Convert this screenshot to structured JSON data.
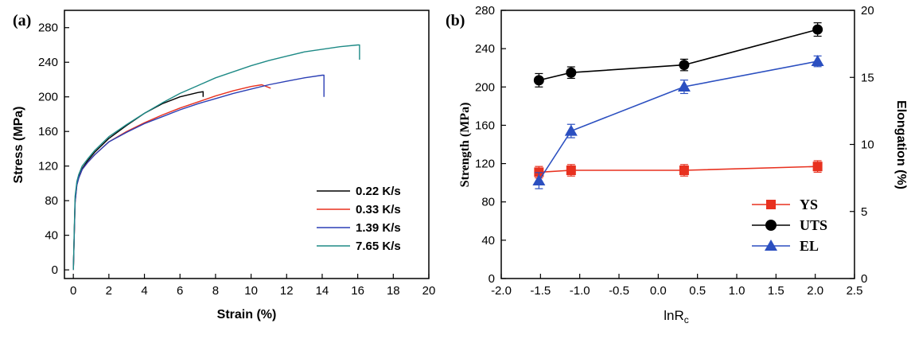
{
  "chart_data": [
    {
      "type": "line",
      "panel_label": "(a)",
      "xlabel": "Strain (%)",
      "ylabel": "Stress (MPa)",
      "xlim": [
        -0.5,
        20
      ],
      "ylim": [
        -10,
        300
      ],
      "xticks": [
        0,
        2,
        4,
        6,
        8,
        10,
        12,
        14,
        16,
        18,
        20
      ],
      "yticks": [
        0,
        40,
        80,
        120,
        160,
        200,
        240,
        280
      ],
      "legend_position": "bottom-right",
      "series": [
        {
          "name": "0.22 K/s",
          "color": "#000000",
          "x": [
            0,
            0.05,
            0.1,
            0.2,
            0.3,
            0.5,
            0.8,
            1.2,
            2,
            3,
            4,
            5,
            6,
            7,
            7.3,
            7.3
          ],
          "y": [
            0,
            40,
            80,
            100,
            108,
            117,
            126,
            136,
            152,
            167,
            181,
            192,
            200,
            205,
            206,
            200
          ]
        },
        {
          "name": "0.33 K/s",
          "color": "#e8311f",
          "x": [
            0,
            0.05,
            0.1,
            0.2,
            0.3,
            0.5,
            0.8,
            1.2,
            2,
            3,
            4,
            5,
            6,
            7,
            8,
            9,
            10,
            10.6,
            11.1
          ],
          "y": [
            0,
            40,
            78,
            98,
            106,
            116,
            124,
            133,
            148,
            160,
            170,
            179,
            187,
            194,
            201,
            207,
            212,
            214,
            210
          ]
        },
        {
          "name": "1.39 K/s",
          "color": "#2b3fb5",
          "x": [
            0,
            0.05,
            0.1,
            0.2,
            0.3,
            0.5,
            0.8,
            1.2,
            2,
            3,
            4,
            5,
            6,
            7,
            8,
            9,
            10,
            11,
            12,
            13,
            14,
            14.1,
            14.1
          ],
          "y": [
            0,
            40,
            78,
            98,
            106,
            116,
            124,
            133,
            148,
            159,
            169,
            177,
            185,
            192,
            198,
            204,
            209,
            214,
            218,
            222,
            225,
            225,
            200
          ]
        },
        {
          "name": "7.65 K/s",
          "color": "#1e8a86",
          "x": [
            0,
            0.05,
            0.1,
            0.2,
            0.3,
            0.5,
            0.8,
            1.2,
            2,
            3,
            4,
            5,
            6,
            7,
            8,
            9,
            10,
            11,
            12,
            13,
            14,
            15,
            16,
            16.1,
            16.1
          ],
          "y": [
            0,
            45,
            85,
            102,
            110,
            120,
            128,
            138,
            154,
            168,
            181,
            193,
            204,
            213,
            222,
            229,
            236,
            242,
            247,
            252,
            255,
            258,
            260,
            260,
            243
          ]
        }
      ]
    },
    {
      "type": "line",
      "panel_label": "(b)",
      "xlabel": "lnR",
      "xlabel_sub": "c",
      "ylabel": "Strength (MPa)",
      "y2label": "Elongation (%)",
      "xlim": [
        -2.0,
        2.5
      ],
      "ylim": [
        0,
        280
      ],
      "y2lim": [
        0,
        20
      ],
      "xticks": [
        -2.0,
        -1.5,
        -1.0,
        -0.5,
        0.0,
        0.5,
        1.0,
        1.5,
        2.0,
        2.5
      ],
      "xtick_labels": [
        "-2.0",
        "-1.5",
        "-1.0",
        "-0.5",
        "0.0",
        "0.5",
        "1.0",
        "1.5",
        "2.0",
        "2.5"
      ],
      "yticks": [
        0,
        40,
        80,
        120,
        160,
        200,
        240,
        280
      ],
      "y2ticks": [
        0,
        5,
        10,
        15,
        20
      ],
      "legend_position": "bottom-right",
      "x": [
        -1.52,
        -1.11,
        0.33,
        2.03
      ],
      "series": [
        {
          "name": "YS",
          "axis": "left",
          "color": "#e8311f",
          "marker": "square",
          "values": [
            111,
            113,
            113,
            117
          ],
          "errors": [
            6,
            6,
            6,
            6
          ]
        },
        {
          "name": "UTS",
          "axis": "left",
          "color": "#000000",
          "marker": "circle",
          "values": [
            207,
            215,
            223,
            260
          ],
          "errors": [
            7,
            6,
            6,
            7
          ]
        },
        {
          "name": "EL",
          "axis": "right",
          "color": "#2b4fc0",
          "marker": "triangle",
          "values": [
            7.3,
            11.0,
            14.3,
            16.2
          ],
          "errors": [
            0.6,
            0.5,
            0.5,
            0.4
          ]
        }
      ]
    }
  ]
}
